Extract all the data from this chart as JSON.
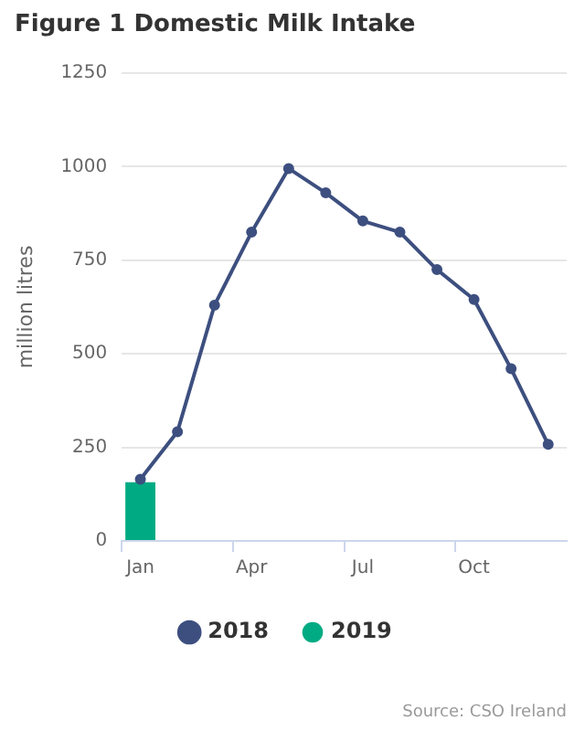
{
  "chart_data": {
    "type": "line",
    "title": "Figure 1 Domestic Milk Intake",
    "ylabel": "million litres",
    "categories": [
      "Jan",
      null,
      null,
      "Apr",
      null,
      null,
      "Jul",
      null,
      null,
      "Oct",
      null,
      null
    ],
    "series": [
      {
        "name": "2018",
        "color": "#3d4f7f",
        "values": [
          165,
          292,
          630,
          825,
          995,
          930,
          855,
          825,
          725,
          645,
          460,
          258
        ]
      },
      {
        "name": "2019",
        "type": "bar",
        "color": "#00ab84",
        "values": [
          157,
          null,
          null,
          null,
          null,
          null,
          null,
          null,
          null,
          null,
          null,
          null
        ]
      }
    ],
    "ylim": [
      0,
      1250
    ],
    "yticks": [
      0,
      250,
      500,
      750,
      1000,
      1250
    ],
    "grid": "y",
    "legend": "bottom",
    "marker": "circle",
    "line_style": "solid",
    "annotations": [
      "Source: CSO Ireland"
    ]
  }
}
